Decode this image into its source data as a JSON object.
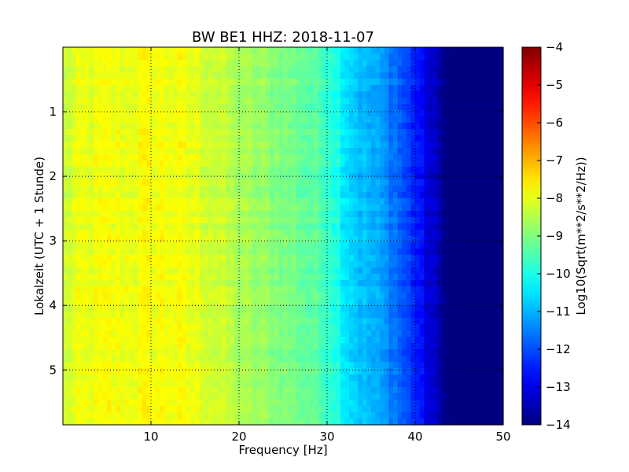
{
  "chart_data": {
    "type": "heatmap",
    "title": "BW BE1 HHZ: 2018-11-07",
    "xlabel": "Frequency [Hz]",
    "ylabel": "Lokalzeit (UTC + 1 Stunde)",
    "xlim": [
      0,
      50
    ],
    "ylim": [
      5.85,
      0
    ],
    "xticks": [
      10,
      20,
      30,
      40,
      50
    ],
    "yticks": [
      1,
      2,
      3,
      4,
      5
    ],
    "grid": true,
    "colormap": "jet",
    "colorbar": {
      "label": "Log10(Sqrt(m**2/s**2/Hz))",
      "range": [
        -14,
        -4
      ],
      "ticks": [
        -4,
        -5,
        -6,
        -7,
        -8,
        -9,
        -10,
        -11,
        -12,
        -13,
        -14
      ]
    },
    "frequency_profile": {
      "frequency_hz": [
        0,
        2,
        5,
        8,
        10,
        12,
        15,
        18,
        20,
        25,
        28,
        30,
        31,
        32,
        34,
        36,
        38,
        39,
        40,
        41,
        42,
        43,
        44,
        50
      ],
      "log10_amplitude": [
        -8.3,
        -8.0,
        -7.9,
        -7.9,
        -7.8,
        -7.85,
        -8.0,
        -8.3,
        -8.6,
        -9.0,
        -9.3,
        -9.6,
        -9.9,
        -10.4,
        -10.9,
        -11.2,
        -11.7,
        -12.1,
        -12.4,
        -12.9,
        -13.3,
        -13.7,
        -14.0,
        -14.0
      ]
    }
  }
}
